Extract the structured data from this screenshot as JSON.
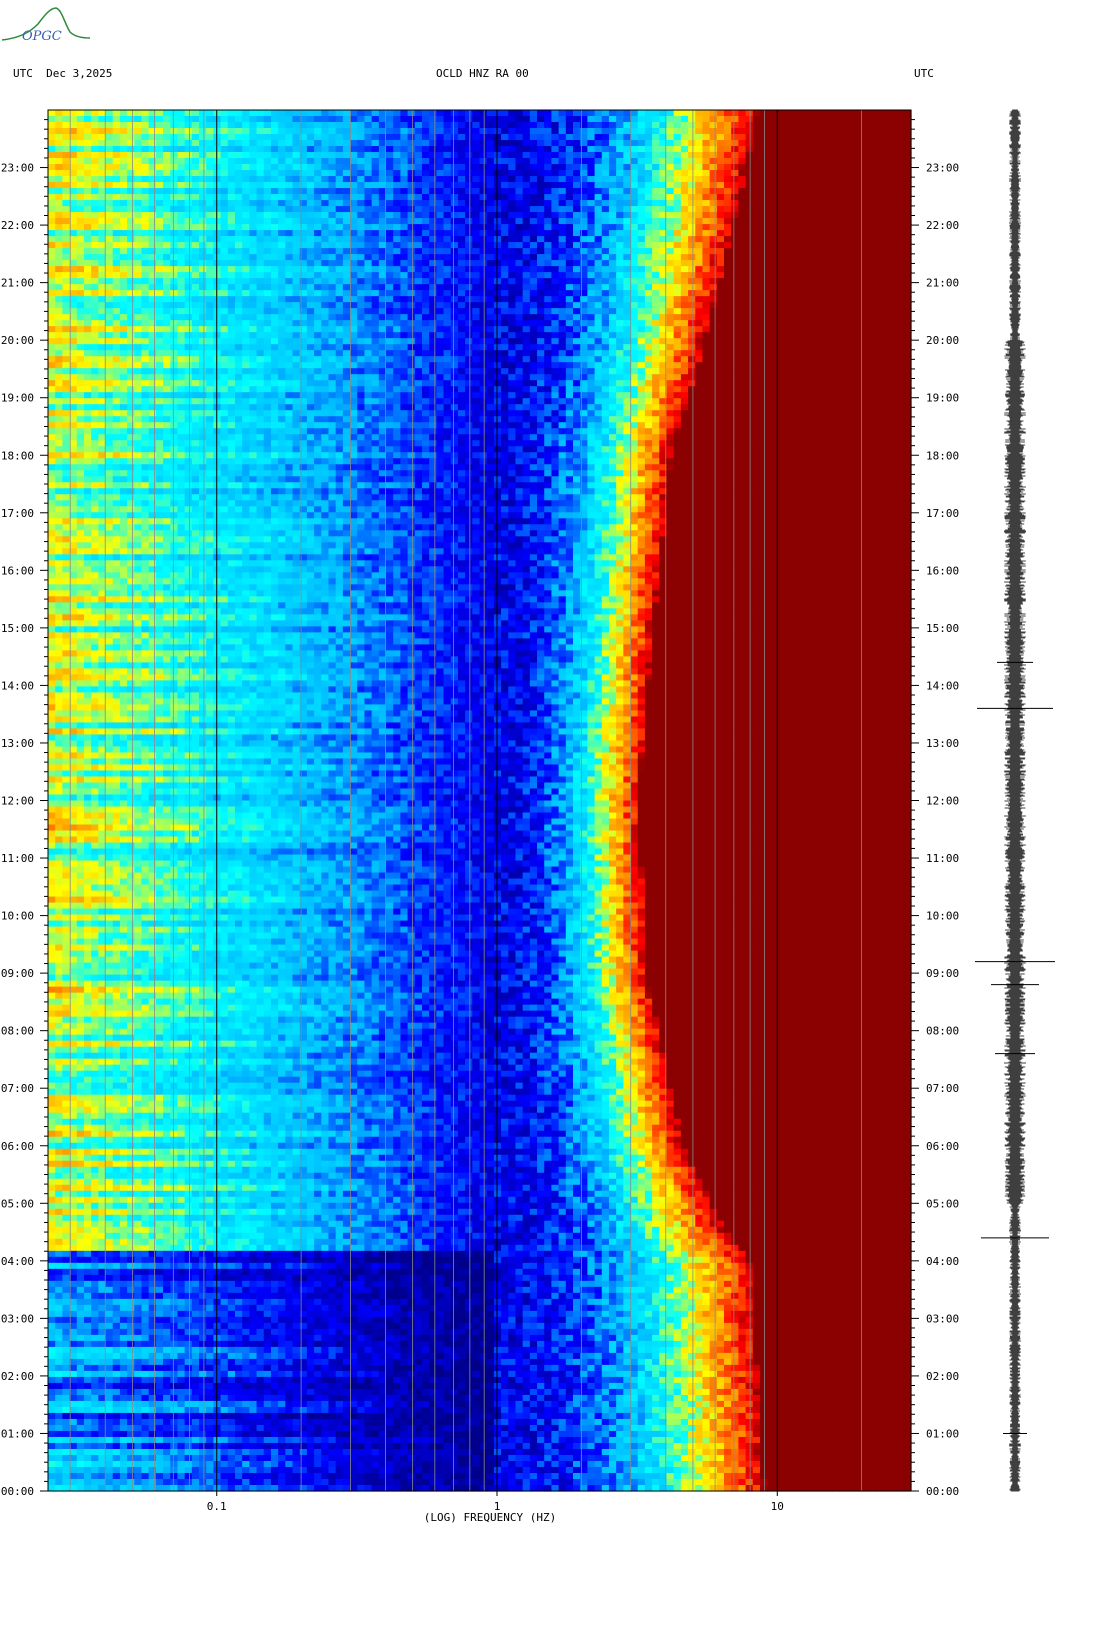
{
  "header": {
    "left_label": "UTC  Dec 3,2025",
    "title": "OCLD HNZ RA 00",
    "right_label": "UTC"
  },
  "logo": {
    "text": "OPGC"
  },
  "chart_data": {
    "type": "heatmap",
    "title": "OCLD HNZ RA 00",
    "xlabel": "(LOG) FREQUENCY (HZ)",
    "xscale": "log",
    "xlim": [
      0.025,
      30
    ],
    "x_ticks": [
      {
        "value": 0.1,
        "label": "0.1"
      },
      {
        "value": 1,
        "label": "1"
      },
      {
        "value": 10,
        "label": "10"
      }
    ],
    "ylim": [
      0,
      24
    ],
    "y_ticks": [
      "00:00",
      "01:00",
      "02:00",
      "03:00",
      "04:00",
      "05:00",
      "06:00",
      "07:00",
      "08:00",
      "09:00",
      "10:00",
      "11:00",
      "12:00",
      "13:00",
      "14:00",
      "15:00",
      "16:00",
      "17:00",
      "18:00",
      "19:00",
      "20:00",
      "21:00",
      "22:00",
      "23:00"
    ],
    "colormap": [
      "#00008b",
      "#0000ff",
      "#00bfff",
      "#00ffff",
      "#ffff00",
      "#ff8c00",
      "#ff0000",
      "#8b0000"
    ],
    "saturation_front_hz": [
      {
        "time": 0,
        "freq": 9
      },
      {
        "time": 4,
        "freq": 8
      },
      {
        "time": 4.5,
        "freq": 6.5
      },
      {
        "time": 6,
        "freq": 4.6
      },
      {
        "time": 9,
        "freq": 3.4
      },
      {
        "time": 12,
        "freq": 3.2
      },
      {
        "time": 15,
        "freq": 3.6
      },
      {
        "time": 18,
        "freq": 4.2
      },
      {
        "time": 20,
        "freq": 5.5
      },
      {
        "time": 22,
        "freq": 7
      },
      {
        "time": 24,
        "freq": 8.5
      }
    ],
    "quiet_minimum_hz": 1
  }
}
